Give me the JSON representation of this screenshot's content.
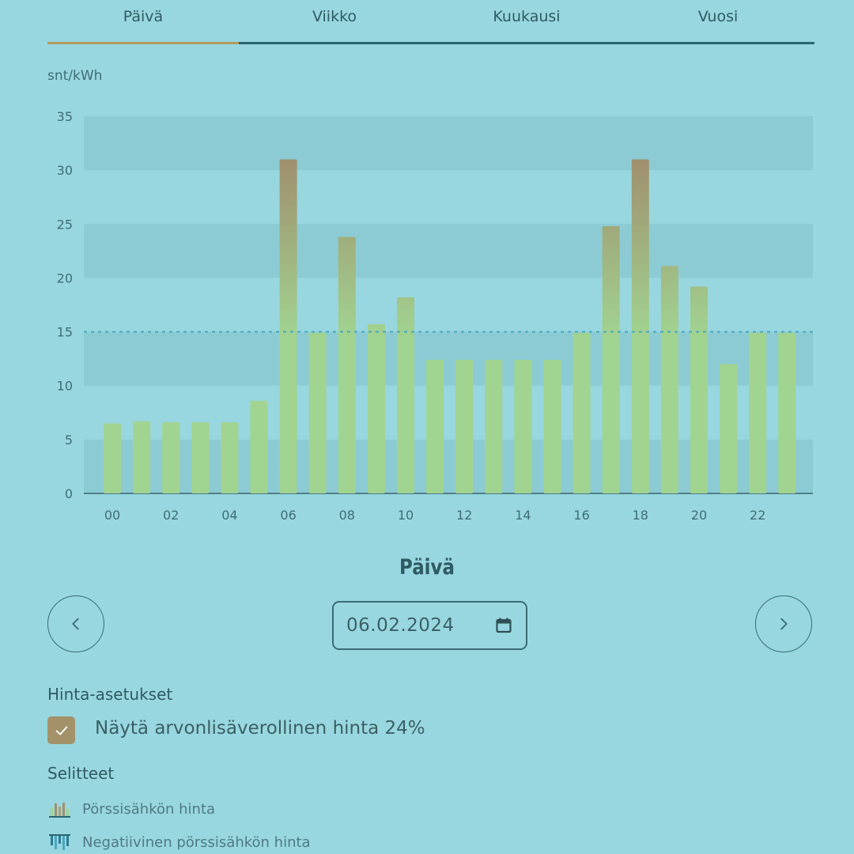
{
  "tabs": [
    {
      "label": "Päivä",
      "active": true
    },
    {
      "label": "Viikko",
      "active": false
    },
    {
      "label": "Kuukausi",
      "active": false
    },
    {
      "label": "Vuosi",
      "active": false
    }
  ],
  "chart_data": {
    "type": "bar",
    "ylabel": "snt/kWh",
    "ylim": [
      0,
      35
    ],
    "yticks": [
      "0",
      "5",
      "10",
      "15",
      "20",
      "25",
      "30",
      "35"
    ],
    "xtick_labels": [
      "00",
      "02",
      "04",
      "06",
      "08",
      "10",
      "12",
      "14",
      "16",
      "18",
      "20",
      "22"
    ],
    "categories": [
      "00",
      "01",
      "02",
      "03",
      "04",
      "05",
      "06",
      "07",
      "08",
      "09",
      "10",
      "11",
      "12",
      "13",
      "14",
      "15",
      "16",
      "17",
      "18",
      "19",
      "20",
      "21",
      "22",
      "23"
    ],
    "values": [
      6.5,
      6.7,
      6.6,
      6.6,
      6.6,
      8.6,
      31.0,
      14.9,
      23.8,
      15.7,
      18.2,
      12.4,
      12.4,
      12.4,
      12.4,
      12.4,
      14.9,
      24.8,
      31.0,
      21.1,
      19.2,
      12.0,
      14.9,
      14.9
    ],
    "average_line": 15,
    "grid": true,
    "colors": {
      "low": "#a1d491",
      "high": "#a08f6d",
      "avg_line": "#4aa8c0",
      "band": "#8ccbd3"
    }
  },
  "day_heading": "Päivä",
  "date": {
    "value": "06.02.2024"
  },
  "price_settings": {
    "title": "Hinta-asetukset",
    "vat_checked": true,
    "vat_label": "Näytä arvonlisäverollinen hinta 24%"
  },
  "legend": {
    "title": "Selitteet",
    "items": [
      {
        "label": "Pörssisähkön hinta",
        "icon": "bar-chart-icon"
      },
      {
        "label": "Negatiivinen pörssisähkön hinta",
        "icon": "negative-bar-chart-icon"
      }
    ]
  }
}
